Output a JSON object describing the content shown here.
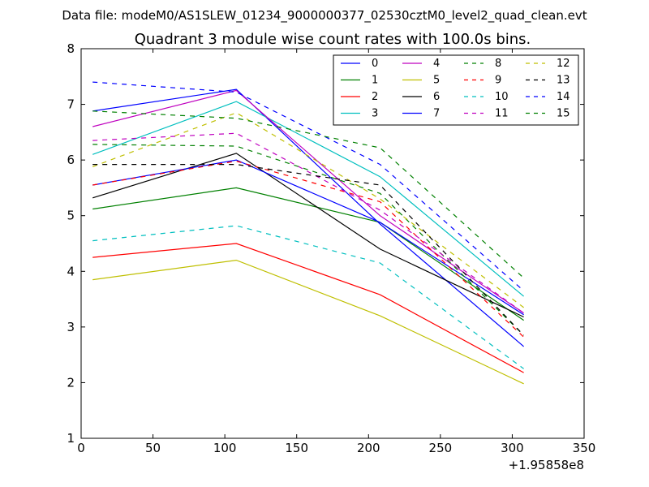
{
  "suptitle": "Data file: modeM0/AS1SLEW_01234_9000000377_02530cztM0_level2_quad_clean.evt",
  "chart_data": {
    "type": "line",
    "title": "Quadrant 3 module wise count rates with 100.0s bins.",
    "xlabel": "",
    "ylabel": "",
    "offset_label": "+1.95858e8",
    "xlim": [
      0,
      350
    ],
    "ylim": [
      1,
      8
    ],
    "xticks": [
      "0",
      "50",
      "100",
      "150",
      "200",
      "250",
      "300",
      "350"
    ],
    "yticks": [
      "1",
      "2",
      "3",
      "4",
      "5",
      "6",
      "7",
      "8"
    ],
    "grid": false,
    "legend_position": "top-right",
    "x": [
      8,
      108,
      208,
      308
    ],
    "series": [
      {
        "name": "0",
        "color": "#0000ff",
        "dash": "solid",
        "values": [
          6.88,
          7.27,
          4.85,
          2.65
        ]
      },
      {
        "name": "1",
        "color": "#008000",
        "dash": "solid",
        "values": [
          5.12,
          5.5,
          4.88,
          3.12
        ]
      },
      {
        "name": "2",
        "color": "#ff0000",
        "dash": "solid",
        "values": [
          4.25,
          4.5,
          3.58,
          2.18
        ]
      },
      {
        "name": "3",
        "color": "#00bfbf",
        "dash": "solid",
        "values": [
          6.1,
          7.05,
          5.7,
          3.55
        ]
      },
      {
        "name": "4",
        "color": "#bf00bf",
        "dash": "solid",
        "values": [
          6.6,
          7.25,
          5.0,
          3.25
        ]
      },
      {
        "name": "5",
        "color": "#bfbf00",
        "dash": "solid",
        "values": [
          3.85,
          4.2,
          3.2,
          1.98
        ]
      },
      {
        "name": "6",
        "color": "#000000",
        "dash": "solid",
        "values": [
          5.32,
          6.12,
          4.4,
          3.18
        ]
      },
      {
        "name": "7",
        "color": "#0000ff",
        "dash": "solid",
        "values": [
          5.55,
          6.0,
          4.88,
          3.22
        ]
      },
      {
        "name": "8",
        "color": "#008000",
        "dash": "dashed",
        "values": [
          6.28,
          6.25,
          5.4,
          2.85
        ]
      },
      {
        "name": "9",
        "color": "#ff0000",
        "dash": "dashed",
        "values": [
          5.55,
          5.98,
          5.25,
          2.82
        ]
      },
      {
        "name": "10",
        "color": "#00bfbf",
        "dash": "dashed",
        "values": [
          4.55,
          4.82,
          4.15,
          2.25
        ]
      },
      {
        "name": "11",
        "color": "#bf00bf",
        "dash": "dashed",
        "values": [
          6.35,
          6.48,
          5.1,
          3.25
        ]
      },
      {
        "name": "12",
        "color": "#bfbf00",
        "dash": "dashed",
        "values": [
          5.88,
          6.85,
          5.3,
          3.35
        ]
      },
      {
        "name": "13",
        "color": "#000000",
        "dash": "dashed",
        "values": [
          5.92,
          5.92,
          5.55,
          2.85
        ]
      },
      {
        "name": "14",
        "color": "#0000ff",
        "dash": "dashed",
        "values": [
          7.4,
          7.22,
          5.92,
          3.65
        ]
      },
      {
        "name": "15",
        "color": "#008000",
        "dash": "dashed",
        "values": [
          6.88,
          6.75,
          6.22,
          3.88
        ]
      }
    ]
  }
}
